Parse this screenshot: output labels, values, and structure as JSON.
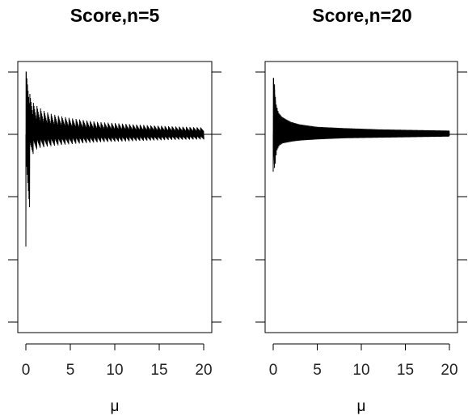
{
  "chart_data": [
    {
      "type": "line",
      "title": "Score,n=5",
      "xlabel": "μ",
      "ylabel": "",
      "xlim": [
        0,
        20
      ],
      "x_ticks": [
        0,
        5,
        10,
        15,
        20
      ],
      "envelope": {
        "x": [
          0.0,
          0.1,
          0.3,
          0.6,
          1.0,
          2.0,
          3.0,
          5.0,
          8.0,
          12.0,
          16.0,
          20.0
        ],
        "y_upper": [
          1.0,
          1.0,
          0.75,
          0.55,
          0.48,
          0.38,
          0.32,
          0.26,
          0.2,
          0.16,
          0.13,
          0.11
        ],
        "y_lower": [
          -1.8,
          -0.8,
          -0.4,
          -0.3,
          -0.25,
          -0.22,
          -0.2,
          -0.17,
          -0.14,
          -0.12,
          -0.1,
          -0.09
        ]
      },
      "sawtooth_spacing": 0.4,
      "ylim": [
        -3.0,
        1.6
      ]
    },
    {
      "type": "line",
      "title": "Score,n=20",
      "xlabel": "μ",
      "ylabel": "",
      "xlim": [
        0,
        20
      ],
      "x_ticks": [
        0,
        5,
        10,
        15,
        20
      ],
      "envelope": {
        "x": [
          0.0,
          0.1,
          0.3,
          0.6,
          1.0,
          2.0,
          3.0,
          5.0,
          8.0,
          12.0,
          16.0,
          20.0
        ],
        "y_upper": [
          0.9,
          0.9,
          0.5,
          0.35,
          0.28,
          0.2,
          0.16,
          0.12,
          0.1,
          0.08,
          0.07,
          0.06
        ],
        "y_lower": [
          -0.6,
          -0.6,
          -0.3,
          -0.2,
          -0.16,
          -0.13,
          -0.11,
          -0.09,
          -0.07,
          -0.06,
          -0.05,
          -0.04
        ]
      },
      "sawtooth_spacing": 0.1,
      "ylim": [
        -3.0,
        1.6
      ]
    }
  ]
}
